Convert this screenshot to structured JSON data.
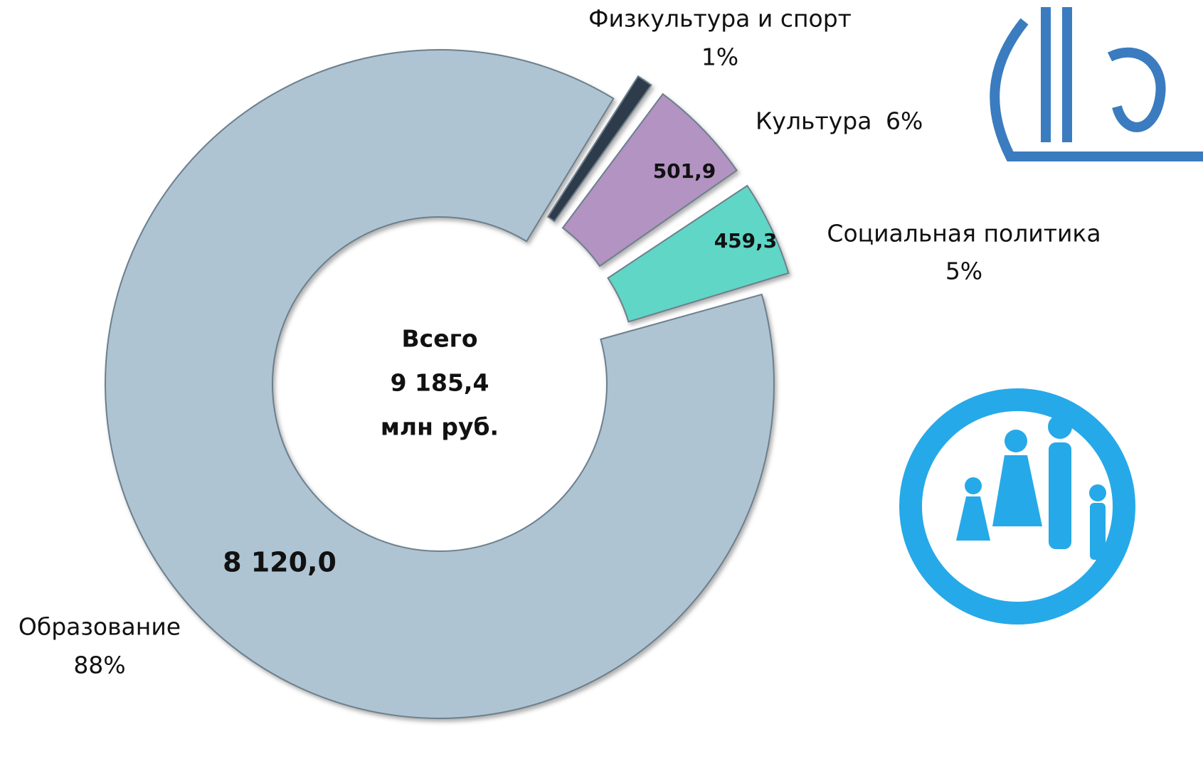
{
  "chart_data": {
    "type": "donut",
    "categories": [
      "Физкультура и спорт",
      "Культура",
      "Социальная политика",
      "Образование"
    ],
    "values": [
      104.2,
      501.9,
      459.3,
      8120.0
    ],
    "value_labels": [
      null,
      "501,9",
      "459,3",
      "8 120,0"
    ],
    "shares": [
      1,
      6,
      5,
      88
    ],
    "share_labels": [
      "1%",
      "6%",
      "5%",
      "88%"
    ],
    "colors": [
      "#2f3b4c",
      "#b293c2",
      "#5fd6c6",
      "#aec4d3"
    ],
    "center_label": [
      "Всего",
      "9 185,4",
      "млн руб."
    ]
  }
}
